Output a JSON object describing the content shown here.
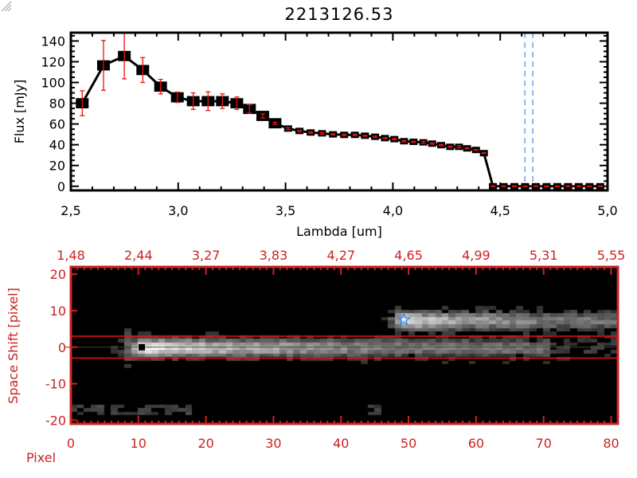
{
  "chart_data": [
    {
      "type": "line",
      "title": "2213126.53",
      "xlabel": "Lambda [um]",
      "ylabel": "Flux [mJy]",
      "xlim": [
        2.5,
        5.0
      ],
      "ylim": [
        -4,
        148
      ],
      "xticks": [
        "2,5",
        "3,0",
        "3,5",
        "4,0",
        "4,5",
        "5,0"
      ],
      "xtick_values": [
        2.5,
        3.0,
        3.5,
        4.0,
        4.5,
        5.0
      ],
      "yticks": [
        "0",
        "20",
        "40",
        "60",
        "80",
        "100",
        "120",
        "140"
      ],
      "ytick_values": [
        0,
        20,
        40,
        60,
        80,
        100,
        120,
        140
      ],
      "series": [
        {
          "x": [
            2.553,
            2.652,
            2.749,
            2.835,
            2.918,
            2.996,
            3.07,
            3.139,
            3.206,
            3.273,
            3.332,
            3.394,
            3.451,
            3.512,
            3.565,
            3.617,
            3.67,
            3.721,
            3.773,
            3.823,
            3.87,
            3.917,
            3.963,
            4.007,
            4.052,
            4.096,
            4.142,
            4.183,
            4.225,
            4.267,
            4.308,
            4.346,
            4.387,
            4.424,
            4.466,
            4.516,
            4.566,
            4.616,
            4.666,
            4.716,
            4.766,
            4.816,
            4.866,
            4.916,
            4.966
          ],
          "y": [
            80,
            116.5,
            125.5,
            112,
            96,
            85.7,
            82,
            82,
            82,
            80,
            74.5,
            67.8,
            60.7,
            55.6,
            53.3,
            51.8,
            51,
            50,
            49.5,
            49.5,
            48.7,
            47.7,
            46.4,
            45.4,
            43.4,
            42.8,
            42.3,
            41.1,
            39.6,
            38,
            38,
            36.5,
            35,
            31.9,
            0,
            0,
            0,
            0,
            0,
            0,
            0,
            0,
            0,
            0,
            0
          ],
          "yerr": [
            12,
            24,
            22,
            12,
            7,
            5,
            8,
            9,
            7,
            6,
            4,
            2,
            1,
            1,
            0.8,
            0.6,
            0.8,
            0.6,
            0.6,
            0.6,
            0.4,
            0.6,
            0.4,
            0.6,
            0.6,
            0.6,
            1,
            0.6,
            0.6,
            0.6,
            1,
            0.6,
            0.3,
            0.3,
            0,
            0,
            0,
            0,
            0,
            0,
            0,
            0,
            0,
            0,
            0
          ]
        }
      ],
      "zero_line": {
        "y": 0,
        "x_from": 4.466,
        "x_to": 5.0,
        "color": "#ee1111"
      },
      "vertical_markers": [
        4.615,
        4.652
      ],
      "colors": {
        "line": "#000000",
        "errorbar": "#ee1111",
        "marker_inner": "#ee1111",
        "vertical_markers": "#4a90d9"
      }
    },
    {
      "type": "heatmap",
      "xlabel": "Pixel",
      "ylabel": "Space Shift [pixel]",
      "xlim": [
        0,
        81
      ],
      "ylim": [
        -21,
        22
      ],
      "xticks": [
        "0",
        "10",
        "20",
        "30",
        "40",
        "50",
        "60",
        "70",
        "80"
      ],
      "xtick_values": [
        0,
        10,
        20,
        30,
        40,
        50,
        60,
        70,
        80
      ],
      "top_xticks": [
        "1,48",
        "2,44",
        "3,27",
        "3,83",
        "4,27",
        "4,65",
        "4,99",
        "5,31",
        "5,55"
      ],
      "yticks": [
        "-20",
        "-10",
        "0",
        "10",
        "20"
      ],
      "ytick_values": [
        -20,
        -10,
        0,
        10,
        20
      ],
      "extraction_window": [
        -3,
        3
      ],
      "center_line": 0,
      "sources": [
        {
          "marker": "square",
          "pixel": 10.5,
          "shift": 0,
          "color": "#000000"
        },
        {
          "marker": "star",
          "pixel": 49.3,
          "shift": 7.5,
          "color": "#3a8ee6"
        }
      ],
      "colors": {
        "axis": "#cc2222",
        "window": "#ee1111",
        "center_line": "#000000"
      }
    }
  ]
}
